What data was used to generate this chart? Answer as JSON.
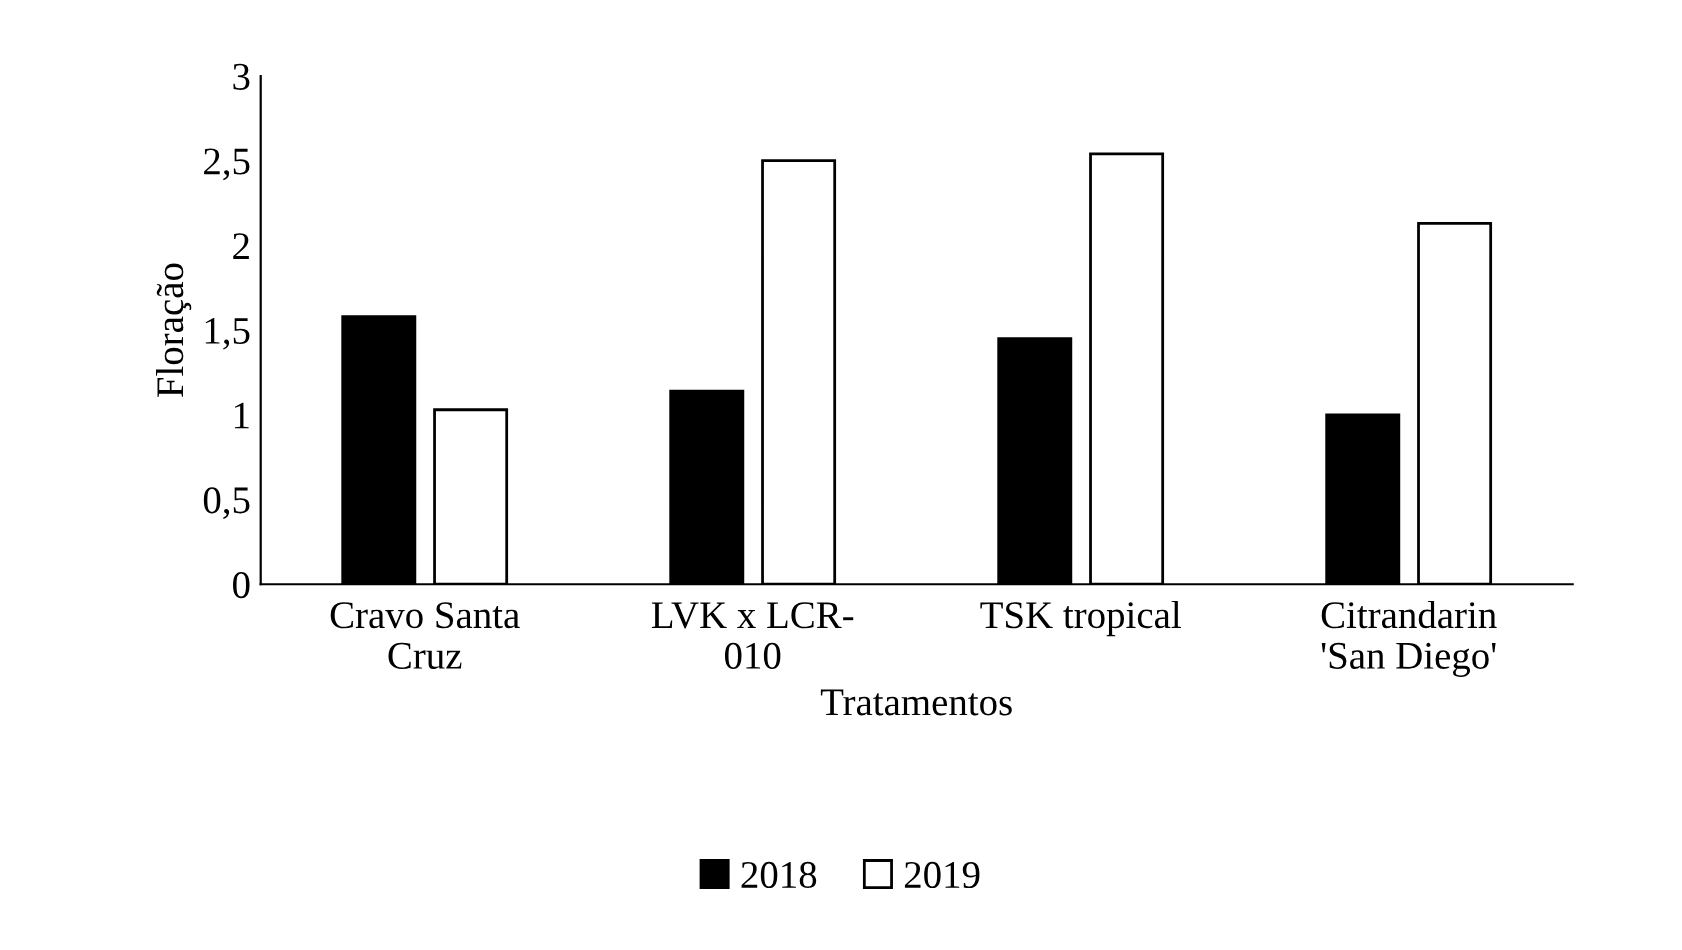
{
  "chart_data": {
    "type": "bar",
    "xlabel": "Tratamentos",
    "ylabel": "Floração",
    "categories": [
      "Cravo Santa\nCruz",
      "LVK x LCR-\n010",
      "TSK tropical",
      "Citrandarin\n'San Diego'"
    ],
    "series": [
      {
        "name": "2018",
        "color": "#000000",
        "values": [
          1.58,
          1.14,
          1.45,
          1.0
        ]
      },
      {
        "name": "2019",
        "color": "#ffffff",
        "values": [
          1.03,
          2.5,
          2.54,
          2.13
        ]
      }
    ],
    "ylim": [
      0,
      3
    ],
    "yticks": [
      0,
      {
        "value": 0.5,
        "label": "0,5"
      },
      1,
      {
        "value": 1.5,
        "label": "1,5"
      },
      2,
      {
        "value": 2.5,
        "label": "2,5"
      },
      3
    ],
    "grid": false,
    "legend": "bottom"
  }
}
